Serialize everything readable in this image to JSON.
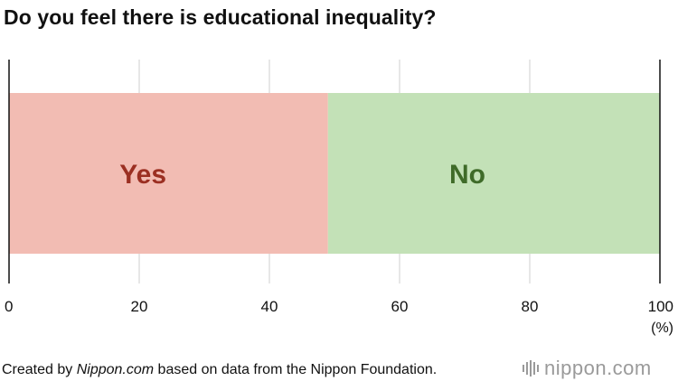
{
  "title": "Do you feel there is educational inequality?",
  "chart_data": {
    "type": "bar",
    "orientation": "horizontal-stacked",
    "categories": [
      ""
    ],
    "series": [
      {
        "name": "Yes",
        "values": [
          49
        ],
        "color": "#f2bcb3",
        "label_color": "#9b2f22"
      },
      {
        "name": "No",
        "values": [
          51
        ],
        "color": "#c3e1b7",
        "label_color": "#3f6b29"
      }
    ],
    "xlim": [
      0,
      100
    ],
    "xticks": [
      0,
      20,
      40,
      60,
      80,
      100
    ],
    "xunit": "(%)",
    "grid": true
  },
  "footer": {
    "prefix": "Created by ",
    "brand": "Nippon.com",
    "suffix": " based on data from the Nippon Foundation."
  },
  "logo": {
    "text": "nippon.com",
    "color": "#9a9a9a",
    "icon": "nippon-bars-icon"
  }
}
